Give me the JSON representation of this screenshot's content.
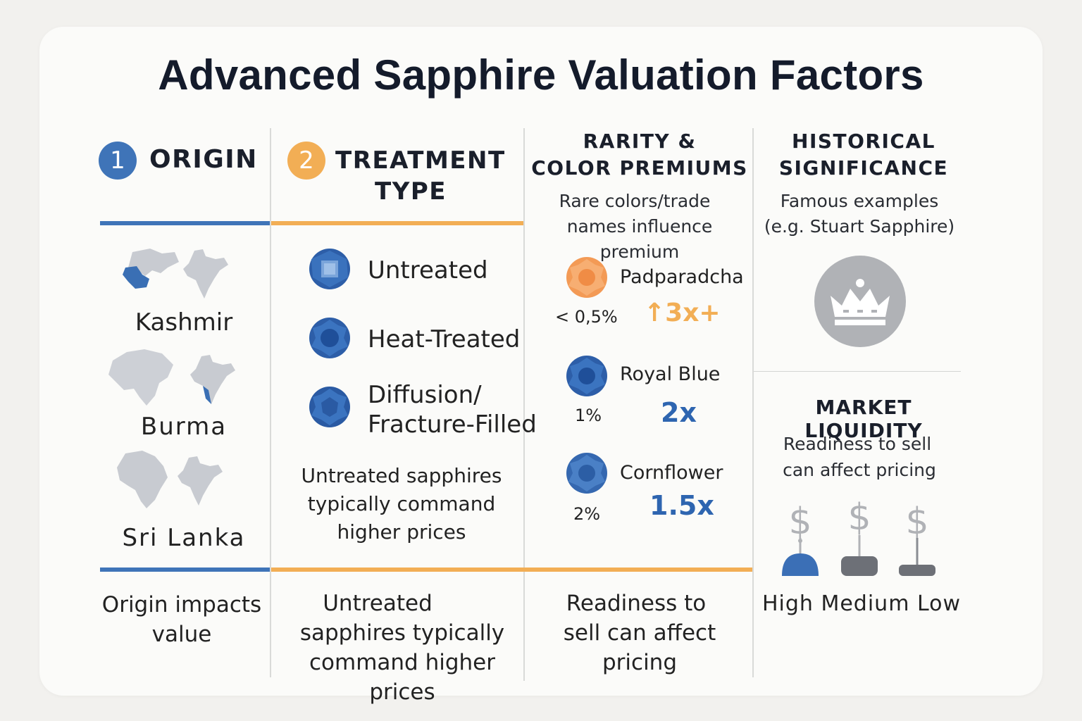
{
  "title": "Advanced Sapphire Valuation Factors",
  "colors": {
    "blue": "#3f74b8",
    "orange": "#f2ae55",
    "gray": "#b0b2b6",
    "dark": "#141b2b"
  },
  "origin": {
    "number": "1",
    "heading": "ORIGIN",
    "items": [
      {
        "label": "Kashmir",
        "icon": "kashmir-map-icon"
      },
      {
        "label": "Burma",
        "icon": "burma-map-icon"
      },
      {
        "label": "Sri Lanka",
        "icon": "sri-lanka-map-icon"
      }
    ],
    "footer_line1": "Origin impacts",
    "footer_line2": "value"
  },
  "treatment": {
    "number": "2",
    "heading_line1": "TREATMENT",
    "heading_line2": "TYPE",
    "items": [
      {
        "label": "Untreated",
        "icon": "untreated-gem-icon"
      },
      {
        "label": "Heat-Treated",
        "icon": "heat-treated-gem-icon"
      },
      {
        "label_line1": "Diffusion/",
        "label_line2": "Fracture-Filled",
        "icon": "diffusion-gem-icon"
      }
    ],
    "note_line1": "Untreated sapphires",
    "note_line2": "typically command",
    "note_line3": "higher prices",
    "footer_line1": "Untreated",
    "footer_line2": "sapphires typically",
    "footer_line3": "command higher prices"
  },
  "rarity": {
    "heading_line1": "RARITY &",
    "heading_line2": "COLOR PREMIUMS",
    "sub_line1": "Rare colors/trade",
    "sub_line2": "names influence premium",
    "items": [
      {
        "name": "Padparadcha",
        "share": "< 0,5%",
        "multiplier": "↑3x+",
        "color": "#f5a15c"
      },
      {
        "name": "Royal Blue",
        "share": "1%",
        "multiplier": "2x",
        "color": "#3a70ba"
      },
      {
        "name": "Cornflower",
        "share": "2%",
        "multiplier": "1.5x",
        "color": "#4a7fc2"
      }
    ],
    "footer_line1": "Readiness to",
    "footer_line2": "sell can affect",
    "footer_line3": "pricing"
  },
  "historical": {
    "heading_line1": "HISTORICAL",
    "heading_line2": "SIGNIFICANCE",
    "sub_line1": "Famous examples",
    "sub_line2": "(e.g. Stuart Sapphire)",
    "icon": "crown-icon"
  },
  "liquidity": {
    "heading": "MARKET LIQUIDITY",
    "sub_line1": "Readiness to sell",
    "sub_line2": "can affect pricing",
    "levels_label": "High Medium Low",
    "icons": [
      "high-liquidity-icon",
      "medium-liquidity-icon",
      "low-liquidity-icon"
    ]
  }
}
